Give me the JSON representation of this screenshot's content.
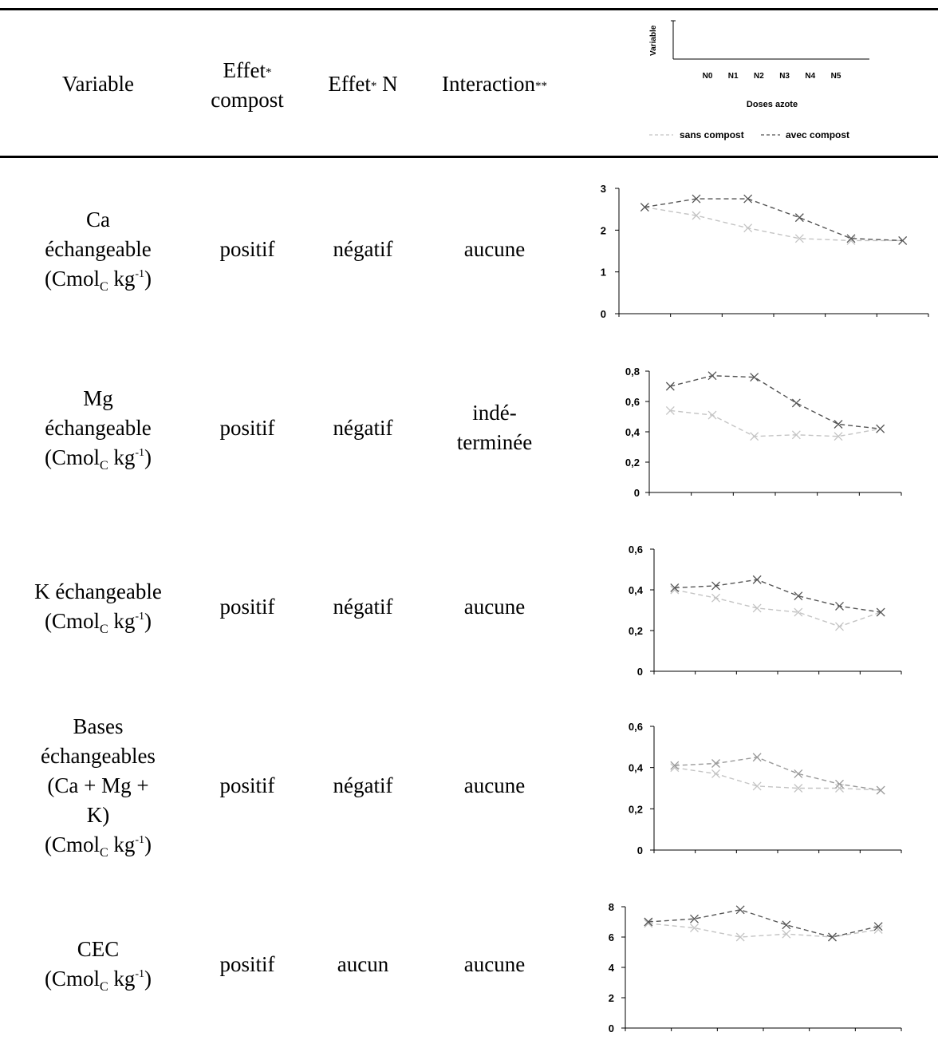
{
  "header": {
    "variable": "Variable",
    "effet_compost_1": "Effet",
    "effet_compost_sup": "*",
    "effet_compost_2": "compost",
    "effet_n_1": "Effet",
    "effet_n_sup": "*",
    "effet_n_2": " N",
    "interaction": "Interaction",
    "interaction_sup": "**",
    "legend_chart": {
      "ylabel": "Variable",
      "xlabel": "Doses azote",
      "categories": [
        "N0",
        "N1",
        "N2",
        "N3",
        "N4",
        "N5"
      ],
      "legend": [
        "sans compost",
        "avec compost"
      ]
    }
  },
  "rows": [
    {
      "var_lines": [
        "Ca",
        "échangeable"
      ],
      "unit": {
        "pre": "(Cmol",
        "sub": "C",
        "mid": " kg",
        "sup": "-1",
        "post": ")"
      },
      "effet_compost": "positif",
      "effet_n": "négatif",
      "interaction": [
        "aucune"
      ]
    },
    {
      "var_lines": [
        "Mg",
        "échangeable"
      ],
      "unit": {
        "pre": "(Cmol",
        "sub": "C",
        "mid": " kg",
        "sup": "-1",
        "post": ")"
      },
      "effet_compost": "positif",
      "effet_n": "négatif",
      "interaction": [
        "indé-",
        "terminée"
      ]
    },
    {
      "var_lines": [
        "K échangeable"
      ],
      "unit": {
        "pre": "(Cmol",
        "sub": "C",
        "mid": " kg",
        "sup": "-1",
        "post": ")"
      },
      "effet_compost": "positif",
      "effet_n": "négatif",
      "interaction": [
        "aucune"
      ]
    },
    {
      "var_lines": [
        "Bases",
        "échangeables",
        "(Ca + Mg +",
        "K)"
      ],
      "unit": {
        "pre": "(Cmol",
        "sub": "C",
        "mid": " kg",
        "sup": "-1",
        "post": ")"
      },
      "effet_compost": "positif",
      "effet_n": "négatif",
      "interaction": [
        "aucune"
      ]
    },
    {
      "var_lines": [
        "CEC"
      ],
      "unit": {
        "pre": "(Cmol",
        "sub": "C",
        "mid": " kg",
        "sup": "-1",
        "post": ")"
      },
      "effet_compost": "positif",
      "effet_n": "aucun",
      "interaction": [
        "aucune"
      ]
    }
  ],
  "chart_data": [
    {
      "type": "line",
      "categories": [
        "N0",
        "N1",
        "N2",
        "N3",
        "N4",
        "N5"
      ],
      "ylim": [
        0,
        3
      ],
      "yticks": [
        "0",
        "1",
        "2",
        "3"
      ],
      "series": [
        {
          "values": [
            2.55,
            2.75,
            2.75,
            2.3,
            1.8,
            1.75
          ],
          "color": "#555555"
        },
        {
          "values": [
            2.55,
            2.35,
            2.05,
            1.8,
            1.75,
            1.75
          ],
          "color": "#c4c4c4"
        }
      ]
    },
    {
      "type": "line",
      "categories": [
        "N0",
        "N1",
        "N2",
        "N3",
        "N4",
        "N5"
      ],
      "ylim": [
        0,
        0.8
      ],
      "yticks": [
        "0",
        "0,2",
        "0,4",
        "0,6",
        "0,8"
      ],
      "series": [
        {
          "values": [
            0.7,
            0.77,
            0.76,
            0.59,
            0.45,
            0.42
          ],
          "color": "#555555"
        },
        {
          "values": [
            0.54,
            0.51,
            0.37,
            0.38,
            0.37,
            0.42
          ],
          "color": "#c4c4c4"
        }
      ]
    },
    {
      "type": "line",
      "categories": [
        "N0",
        "N1",
        "N2",
        "N3",
        "N4",
        "N5"
      ],
      "ylim": [
        0,
        0.6
      ],
      "yticks": [
        "0",
        "0,2",
        "0,4",
        "0,6"
      ],
      "series": [
        {
          "values": [
            0.41,
            0.42,
            0.45,
            0.37,
            0.32,
            0.29
          ],
          "color": "#555555"
        },
        {
          "values": [
            0.4,
            0.36,
            0.31,
            0.29,
            0.22,
            0.29
          ],
          "color": "#c4c4c4"
        }
      ]
    },
    {
      "type": "line",
      "categories": [
        "N0",
        "N1",
        "N2",
        "N3",
        "N4",
        "N5"
      ],
      "ylim": [
        0,
        0.6
      ],
      "yticks": [
        "0",
        "0,2",
        "0,4",
        "0,6"
      ],
      "series": [
        {
          "values": [
            0.41,
            0.42,
            0.45,
            0.37,
            0.32,
            0.29
          ],
          "color": "#9a9a9a"
        },
        {
          "values": [
            0.4,
            0.37,
            0.31,
            0.3,
            0.3,
            0.29
          ],
          "color": "#c4c4c4"
        }
      ]
    },
    {
      "type": "line",
      "categories": [
        "N0",
        "N1",
        "N2",
        "N3",
        "N4",
        "N5"
      ],
      "ylim": [
        0,
        8
      ],
      "yticks": [
        "0",
        "2",
        "4",
        "6",
        "8"
      ],
      "series": [
        {
          "values": [
            7.0,
            7.2,
            7.8,
            6.8,
            6.0,
            6.7
          ],
          "color": "#555555"
        },
        {
          "values": [
            6.9,
            6.6,
            6.0,
            6.2,
            6.0,
            6.5
          ],
          "color": "#c4c4c4"
        }
      ]
    }
  ]
}
